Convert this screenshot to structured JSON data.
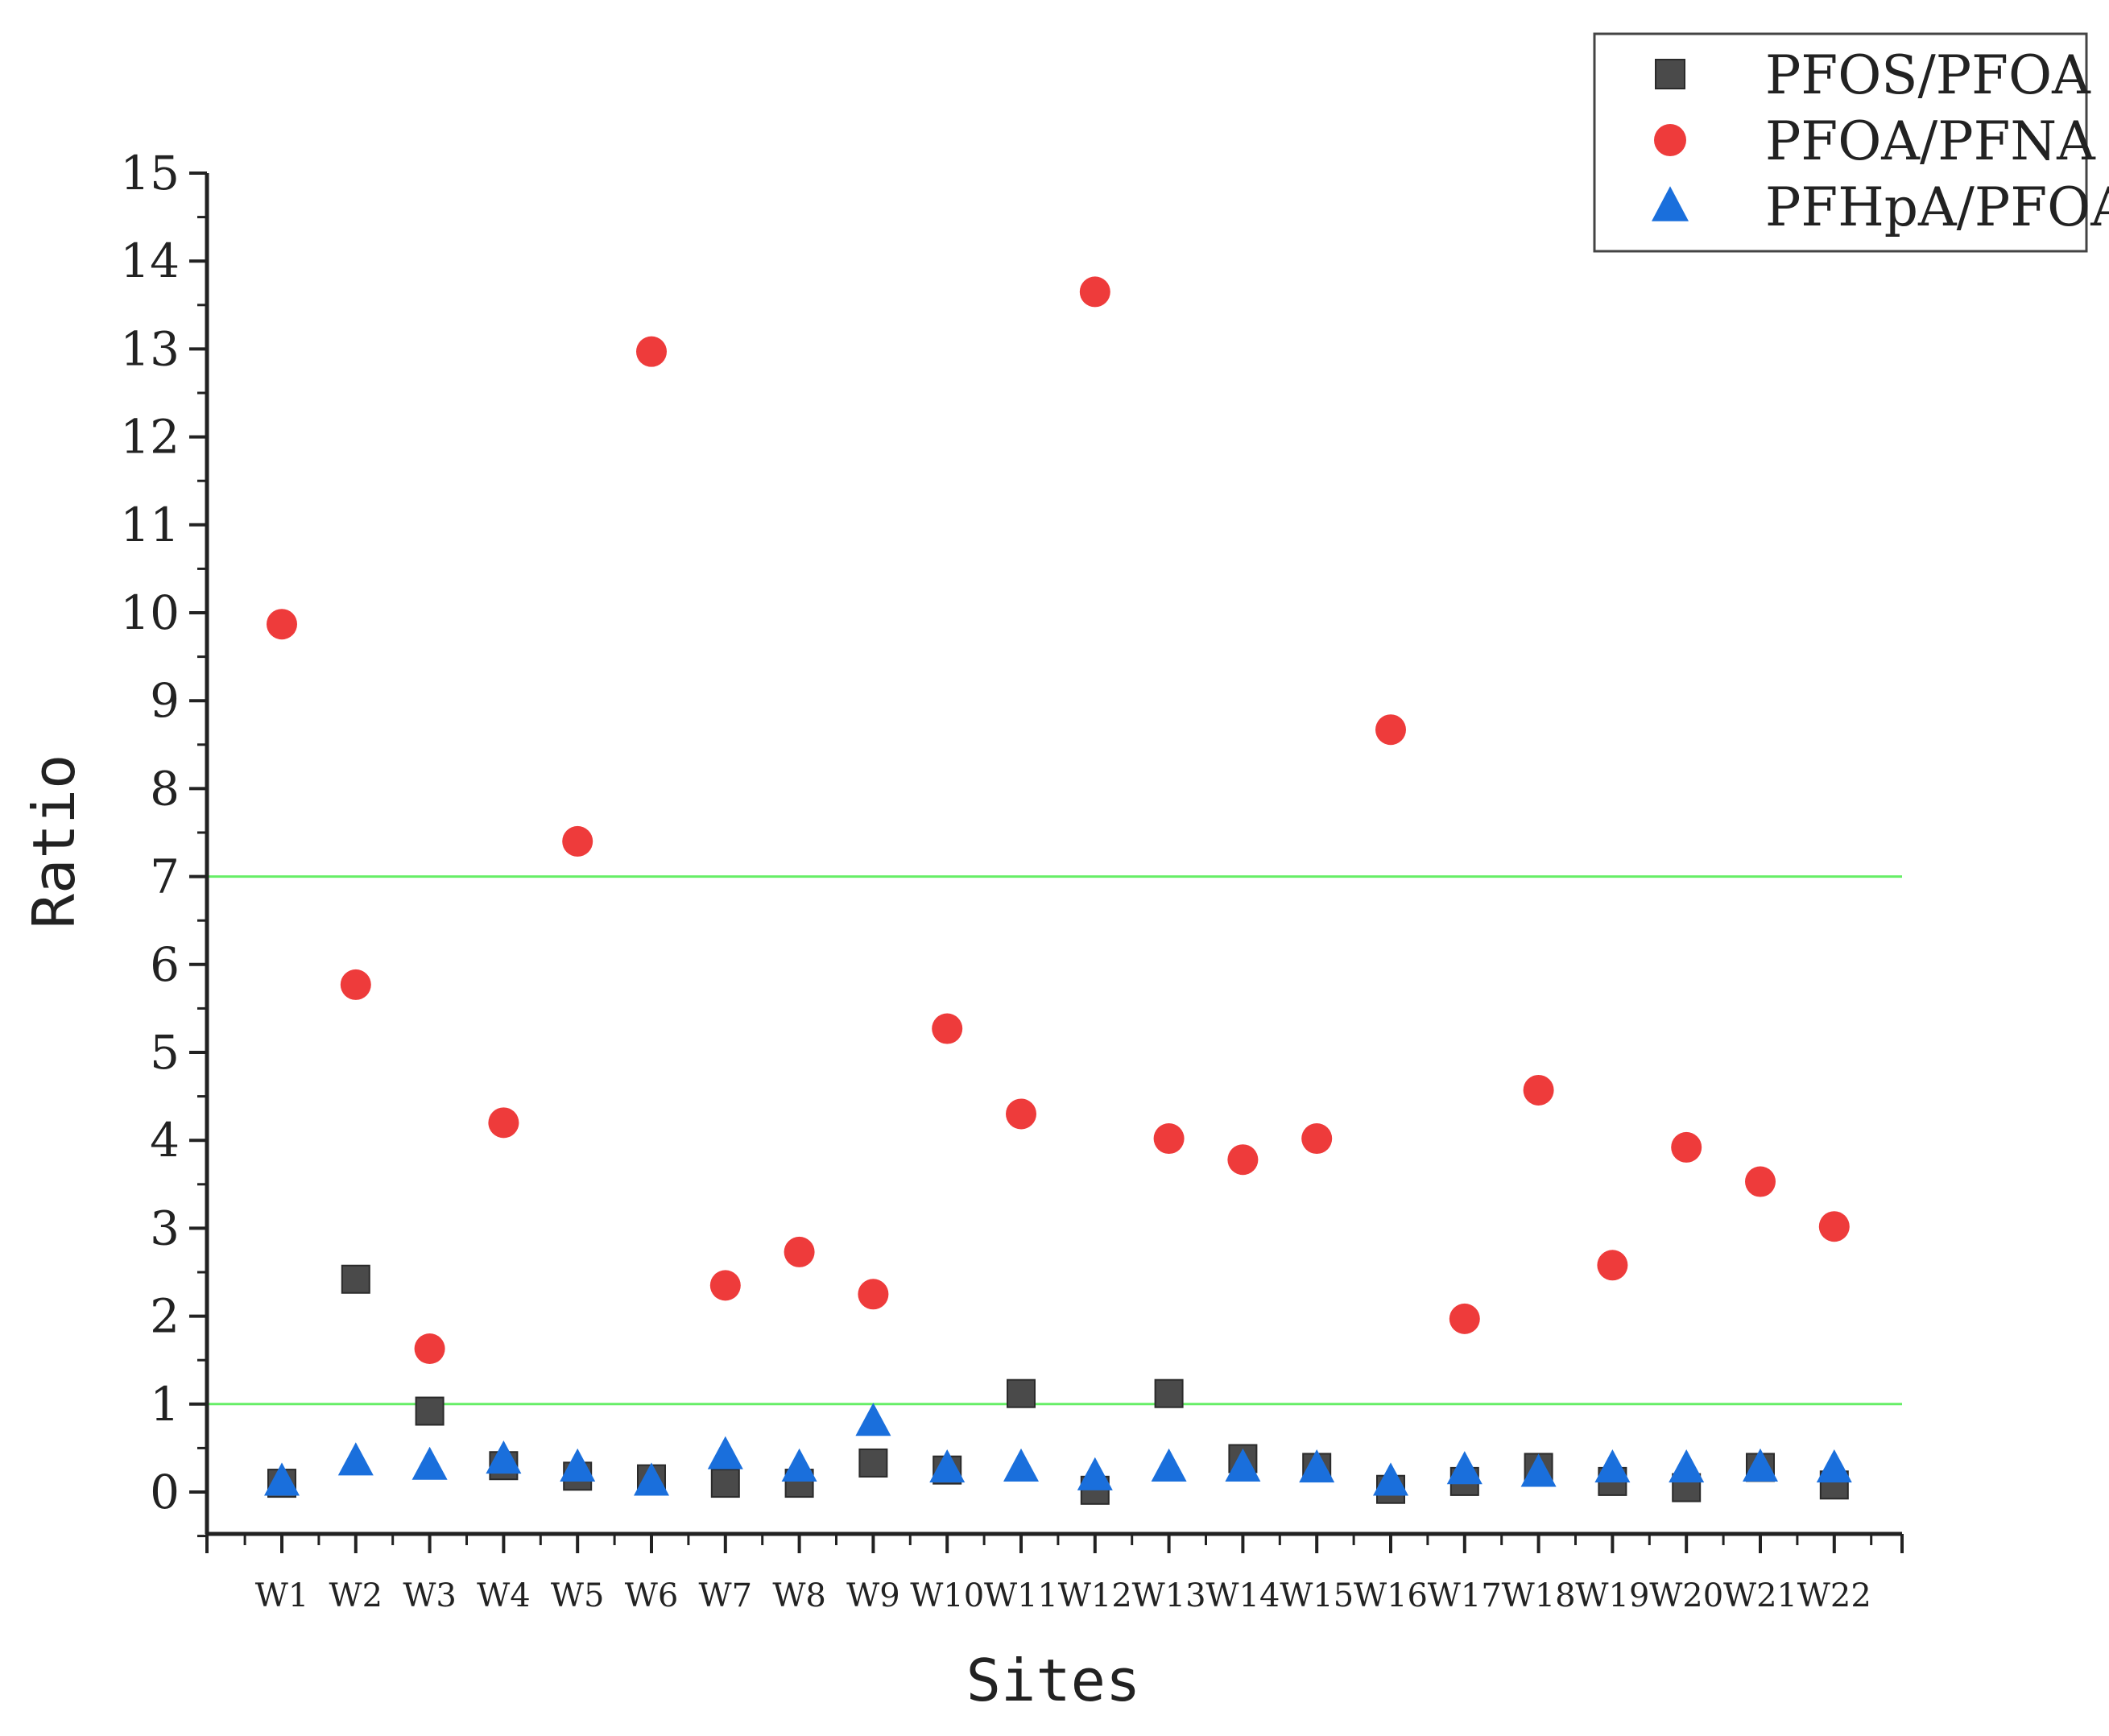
{
  "chart_data": {
    "type": "scatter",
    "xlabel": "Sites",
    "ylabel": "Ratio",
    "ylim": [
      0,
      15
    ],
    "yticks": [
      "0",
      "1",
      "2",
      "3",
      "4",
      "5",
      "6",
      "7",
      "8",
      "9",
      "10",
      "11",
      "12",
      "13",
      "14",
      "15"
    ],
    "categories": [
      "W1",
      "W2",
      "W3",
      "W4",
      "W5",
      "W6",
      "W7",
      "W8",
      "W9",
      "W10",
      "W11",
      "W12",
      "W13",
      "W14",
      "W15",
      "W16",
      "W17",
      "W18",
      "W19",
      "W20",
      "W21",
      "W22"
    ],
    "reference_lines": [
      7,
      1
    ],
    "reference_line_color": "#66ee66",
    "legend_position": "top-right",
    "series": [
      {
        "name": "PFOS/PFOA",
        "marker": "square",
        "color": "#4a4a4a",
        "values": [
          0.1,
          2.42,
          0.92,
          0.3,
          0.18,
          0.15,
          0.1,
          0.1,
          0.33,
          0.25,
          1.12,
          0.02,
          1.12,
          0.38,
          0.28,
          0.03,
          0.12,
          0.28,
          0.12,
          0.05,
          0.28,
          0.08
        ]
      },
      {
        "name": "PFOA/PFNA",
        "marker": "circle",
        "color": "#ee3b3b",
        "values": [
          9.87,
          5.77,
          1.63,
          4.2,
          7.4,
          12.97,
          2.35,
          2.73,
          2.25,
          5.27,
          4.3,
          13.65,
          4.02,
          3.78,
          4.02,
          8.67,
          1.97,
          4.57,
          2.58,
          3.92,
          3.53,
          3.02
        ]
      },
      {
        "name": "PFHpA/PFOA",
        "marker": "triangle",
        "color": "#1a6fdc",
        "values": [
          0.12,
          0.35,
          0.3,
          0.37,
          0.28,
          0.12,
          0.42,
          0.28,
          0.8,
          0.27,
          0.28,
          0.18,
          0.28,
          0.28,
          0.27,
          0.12,
          0.25,
          0.22,
          0.27,
          0.27,
          0.28,
          0.27
        ]
      }
    ]
  }
}
